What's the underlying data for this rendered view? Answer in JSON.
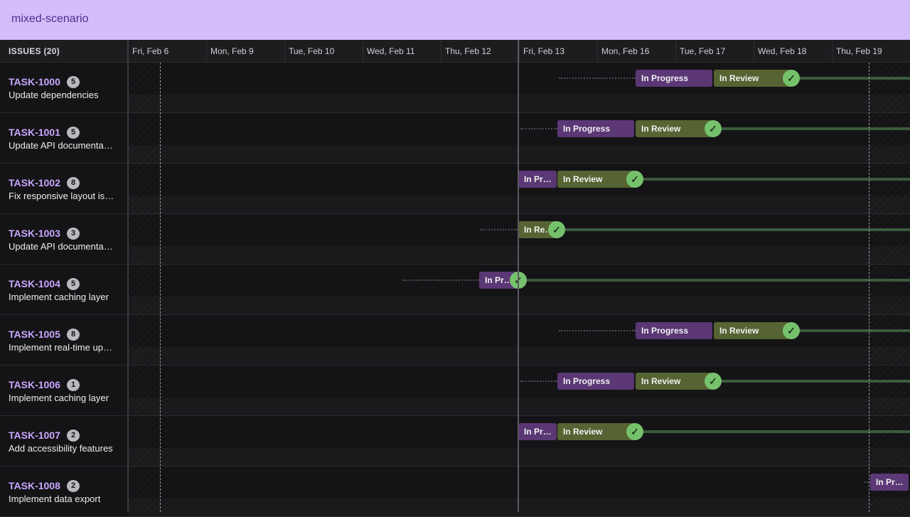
{
  "app": {
    "title": "mixed-scenario"
  },
  "issues_header": "ISSUES (20)",
  "dates": [
    "Fri, Feb 6",
    "Mon, Feb 9",
    "Tue, Feb 10",
    "Wed, Feb 11",
    "Thu, Feb 12",
    "Fri, Feb 13",
    "Mon, Feb 16",
    "Tue, Feb 17",
    "Wed, Feb 18",
    "Thu, Feb 19"
  ],
  "status_labels": {
    "in_progress": "In Progress",
    "in_progress_short": "In Pr…",
    "in_review": "In Review",
    "in_review_short": "In Re…"
  },
  "check_glyph": "✓",
  "colors": {
    "accent": "#c9a6ff",
    "topbar": "#d4bdfb",
    "in_progress": "#5b3775",
    "in_review": "#566332",
    "done_check": "#76c26c"
  },
  "tasks": [
    {
      "id": "TASK-1000",
      "points": "5",
      "title": "Update dependencies"
    },
    {
      "id": "TASK-1001",
      "points": "5",
      "title": "Update API documentation"
    },
    {
      "id": "TASK-1002",
      "points": "8",
      "title": "Fix responsive layout issues"
    },
    {
      "id": "TASK-1003",
      "points": "3",
      "title": "Update API documentation"
    },
    {
      "id": "TASK-1004",
      "points": "5",
      "title": "Implement caching layer"
    },
    {
      "id": "TASK-1005",
      "points": "8",
      "title": "Implement real-time updates"
    },
    {
      "id": "TASK-1006",
      "points": "1",
      "title": "Implement caching layer"
    },
    {
      "id": "TASK-1007",
      "points": "2",
      "title": "Add accessibility features"
    },
    {
      "id": "TASK-1008",
      "points": "2",
      "title": "Implement data export"
    }
  ]
}
